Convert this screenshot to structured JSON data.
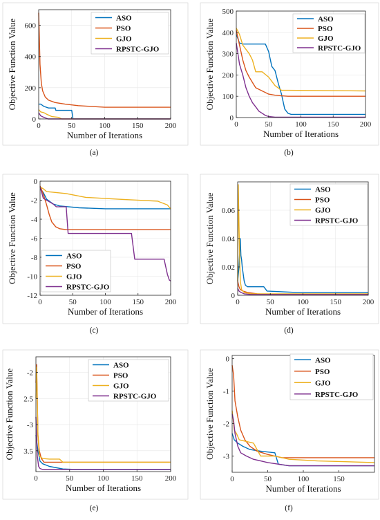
{
  "panel_captions": [
    "(a)",
    "(b)",
    "(c)",
    "(d)",
    "(e)",
    "(f)"
  ],
  "series_colors": {
    "ASO": "#0072bd",
    "PSO": "#d95319",
    "GJO": "#edb120",
    "RPSTC-GJO": "#7e2f8e"
  },
  "chart_data": [
    {
      "type": "line",
      "xlabel": "Number of Iterations",
      "ylabel": "Objective Function Value",
      "xlim": [
        0,
        200
      ],
      "ylim": [
        0,
        700
      ],
      "xticks": [
        0,
        50,
        100,
        150,
        200
      ],
      "yticks": [
        0,
        200,
        400,
        600
      ],
      "grid": true,
      "legend_position": "top-right",
      "series": [
        {
          "name": "ASO",
          "x": [
            0,
            3,
            8,
            15,
            25,
            26,
            50,
            52,
            200
          ],
          "y": [
            95,
            95,
            80,
            70,
            70,
            55,
            55,
            0,
            0
          ]
        },
        {
          "name": "PSO",
          "x": [
            0,
            1,
            2,
            4,
            6,
            10,
            15,
            25,
            40,
            60,
            80,
            100,
            150,
            200
          ],
          "y": [
            680,
            520,
            350,
            230,
            180,
            140,
            120,
            105,
            95,
            85,
            80,
            75,
            75,
            75
          ]
        },
        {
          "name": "GJO",
          "x": [
            0,
            3,
            8,
            12,
            20,
            30,
            35,
            200
          ],
          "y": [
            60,
            45,
            40,
            30,
            15,
            10,
            0,
            0
          ]
        },
        {
          "name": "RPSTC-GJO",
          "x": [
            0,
            3,
            8,
            14,
            200
          ],
          "y": [
            40,
            20,
            10,
            0,
            0
          ]
        }
      ]
    },
    {
      "type": "line",
      "xlabel": "Number of Iterations",
      "ylabel": "Objective Function Value",
      "xlim": [
        0,
        200
      ],
      "ylim": [
        0,
        500
      ],
      "xticks": [
        0,
        50,
        100,
        150,
        200
      ],
      "yticks": [
        0,
        100,
        200,
        300,
        400,
        500
      ],
      "grid": true,
      "legend_position": "top-right",
      "series": [
        {
          "name": "ASO",
          "x": [
            0,
            5,
            10,
            45,
            50,
            55,
            60,
            65,
            70,
            75,
            80,
            85,
            100,
            200
          ],
          "y": [
            390,
            350,
            345,
            345,
            310,
            240,
            220,
            160,
            110,
            40,
            20,
            15,
            15,
            15
          ]
        },
        {
          "name": "PSO",
          "x": [
            0,
            5,
            10,
            15,
            20,
            25,
            30,
            40,
            50,
            60,
            70,
            80,
            200
          ],
          "y": [
            410,
            340,
            270,
            220,
            190,
            165,
            140,
            125,
            110,
            105,
            102,
            100,
            100
          ]
        },
        {
          "name": "GJO",
          "x": [
            0,
            5,
            10,
            20,
            25,
            30,
            40,
            50,
            60,
            70,
            80,
            200
          ],
          "y": [
            420,
            390,
            340,
            300,
            270,
            215,
            215,
            190,
            150,
            128,
            128,
            125
          ]
        },
        {
          "name": "RPSTC-GJO",
          "x": [
            0,
            5,
            10,
            15,
            20,
            25,
            30,
            35,
            40,
            45,
            50,
            60,
            200
          ],
          "y": [
            350,
            250,
            200,
            140,
            100,
            70,
            50,
            30,
            20,
            10,
            5,
            2,
            2
          ]
        }
      ]
    },
    {
      "type": "line",
      "xlabel": "Number of Iterations",
      "ylabel": "Objective Function Value",
      "xlim": [
        0,
        200
      ],
      "ylim": [
        -12,
        0
      ],
      "xticks": [
        0,
        50,
        100,
        150,
        200
      ],
      "yticks": [
        0,
        -2,
        -4,
        -6,
        -8,
        -10,
        -12
      ],
      "grid": true,
      "legend_position": "bottom-left",
      "series": [
        {
          "name": "ASO",
          "x": [
            0,
            5,
            10,
            20,
            30,
            60,
            100,
            200
          ],
          "y": [
            -0.8,
            -1.2,
            -1.9,
            -2.4,
            -2.6,
            -2.8,
            -2.9,
            -2.9
          ]
        },
        {
          "name": "PSO",
          "x": [
            0,
            3,
            6,
            10,
            14,
            18,
            24,
            30,
            40,
            60,
            200
          ],
          "y": [
            -0.5,
            -1.0,
            -1.6,
            -2.5,
            -3.5,
            -4.3,
            -4.8,
            -5.0,
            -5.1,
            -5.1,
            -5.1
          ]
        },
        {
          "name": "GJO",
          "x": [
            0,
            5,
            10,
            40,
            70,
            120,
            180,
            195,
            200
          ],
          "y": [
            -0.6,
            -0.8,
            -1.1,
            -1.3,
            -1.7,
            -1.9,
            -2.1,
            -2.5,
            -2.9
          ]
        },
        {
          "name": "RPSTC-GJO",
          "x": [
            0,
            5,
            10,
            20,
            25,
            40,
            43,
            60,
            140,
            145,
            190,
            195,
            198,
            200
          ],
          "y": [
            -0.6,
            -1.8,
            -2.0,
            -2.4,
            -2.7,
            -2.7,
            -5.5,
            -5.5,
            -5.5,
            -8.2,
            -8.2,
            -9.8,
            -10.4,
            -10.5
          ]
        }
      ]
    },
    {
      "type": "line",
      "xlabel": "Number of Iterations",
      "ylabel": "Objective Function Value",
      "xlim": [
        0,
        200
      ],
      "ylim": [
        0,
        0.08
      ],
      "xticks": [
        0,
        50,
        100,
        150,
        200
      ],
      "yticks": [
        0,
        0.02,
        0.04,
        0.06
      ],
      "grid": true,
      "legend_position": "top-right",
      "series": [
        {
          "name": "ASO",
          "x": [
            0,
            2,
            4,
            5,
            6,
            7,
            10,
            12,
            15,
            40,
            45,
            90,
            200
          ],
          "y": [
            0.01,
            0.02,
            0.04,
            0.028,
            0.025,
            0.02,
            0.01,
            0.007,
            0.006,
            0.006,
            0.003,
            0.002,
            0.002
          ]
        },
        {
          "name": "PSO",
          "x": [
            0,
            2,
            4,
            8,
            15,
            30,
            50,
            200
          ],
          "y": [
            0.01,
            0.006,
            0.004,
            0.003,
            0.002,
            0.001,
            0.0005,
            0.0005
          ]
        },
        {
          "name": "GJO",
          "x": [
            0,
            1,
            2,
            3,
            4,
            6,
            10,
            20,
            200
          ],
          "y": [
            0.01,
            0.078,
            0.05,
            0.03,
            0.01,
            0.004,
            0.002,
            0.001,
            0.001
          ]
        },
        {
          "name": "RPSTC-GJO",
          "x": [
            0,
            2,
            5,
            10,
            20,
            200
          ],
          "y": [
            0.005,
            0.003,
            0.002,
            0.001,
            0.0005,
            0.0005
          ]
        }
      ]
    },
    {
      "type": "line",
      "xlabel": "Number of Iterations",
      "ylabel": "Objective Function Value",
      "xlim": [
        0,
        200
      ],
      "ylim": [
        -3.9,
        -1.7
      ],
      "ytick_labels_as_printed": true,
      "xticks": [
        0,
        50,
        100,
        150,
        200
      ],
      "yticks": [
        -2,
        -2.5,
        -3,
        -3.5
      ],
      "ytick_labels": [
        "-2",
        "2.5",
        "-3",
        "3.5"
      ],
      "grid": true,
      "legend_position": "top-right",
      "series": [
        {
          "name": "ASO",
          "x": [
            0,
            3,
            6,
            10,
            20,
            40,
            60,
            200
          ],
          "y": [
            -3.2,
            -3.5,
            -3.7,
            -3.75,
            -3.8,
            -3.85,
            -3.86,
            -3.86
          ]
        },
        {
          "name": "PSO",
          "x": [
            0,
            1,
            2,
            3,
            5,
            8,
            12,
            20,
            30,
            200
          ],
          "y": [
            -2.2,
            -1.85,
            -2.5,
            -3.2,
            -3.5,
            -3.65,
            -3.72,
            -3.72,
            -3.72,
            -3.72
          ]
        },
        {
          "name": "GJO",
          "x": [
            0,
            1,
            3,
            5,
            10,
            20,
            35,
            40,
            200
          ],
          "y": [
            -2.5,
            -1.9,
            -3.2,
            -3.6,
            -3.65,
            -3.66,
            -3.66,
            -3.72,
            -3.72
          ]
        },
        {
          "name": "RPSTC-GJO",
          "x": [
            0,
            2,
            4,
            6,
            10,
            20,
            200
          ],
          "y": [
            -2.85,
            -3.6,
            -3.8,
            -3.84,
            -3.86,
            -3.86,
            -3.86
          ]
        }
      ]
    },
    {
      "type": "line",
      "xlabel": "Number of Iterations",
      "ylabel": "Objective Function Value",
      "xlim": [
        0,
        200
      ],
      "ylim": [
        -3.5,
        0.1
      ],
      "xticks": [
        0,
        50,
        100,
        150
      ],
      "yticks": [
        0,
        -1,
        -2,
        -3
      ],
      "grid": false,
      "legend_position": "top-right",
      "series": [
        {
          "name": "ASO",
          "x": [
            0,
            3,
            8,
            15,
            25,
            40,
            60,
            65,
            80,
            200
          ],
          "y": [
            -2.3,
            -2.5,
            -2.6,
            -2.7,
            -2.8,
            -2.85,
            -2.9,
            -3.25,
            -3.3,
            -3.3
          ]
        },
        {
          "name": "PSO",
          "x": [
            0,
            2,
            4,
            8,
            12,
            18,
            25,
            35,
            50,
            70,
            200
          ],
          "y": [
            -0.2,
            -0.5,
            -1.3,
            -1.8,
            -2.2,
            -2.5,
            -2.7,
            -2.85,
            -2.95,
            -3.05,
            -3.05
          ]
        },
        {
          "name": "GJO",
          "x": [
            0,
            3,
            6,
            10,
            20,
            30,
            40,
            60,
            80,
            120,
            200
          ],
          "y": [
            -1.6,
            -2.2,
            -2.3,
            -2.5,
            -2.55,
            -2.6,
            -3.0,
            -3.0,
            -3.1,
            -3.15,
            -3.2
          ]
        },
        {
          "name": "RPSTC-GJO",
          "x": [
            0,
            2,
            4,
            8,
            12,
            20,
            30,
            50,
            80,
            120,
            200
          ],
          "y": [
            -1.7,
            -1.9,
            -2.3,
            -2.7,
            -2.9,
            -3.0,
            -3.1,
            -3.2,
            -3.3,
            -3.3,
            -3.3
          ]
        }
      ]
    }
  ]
}
